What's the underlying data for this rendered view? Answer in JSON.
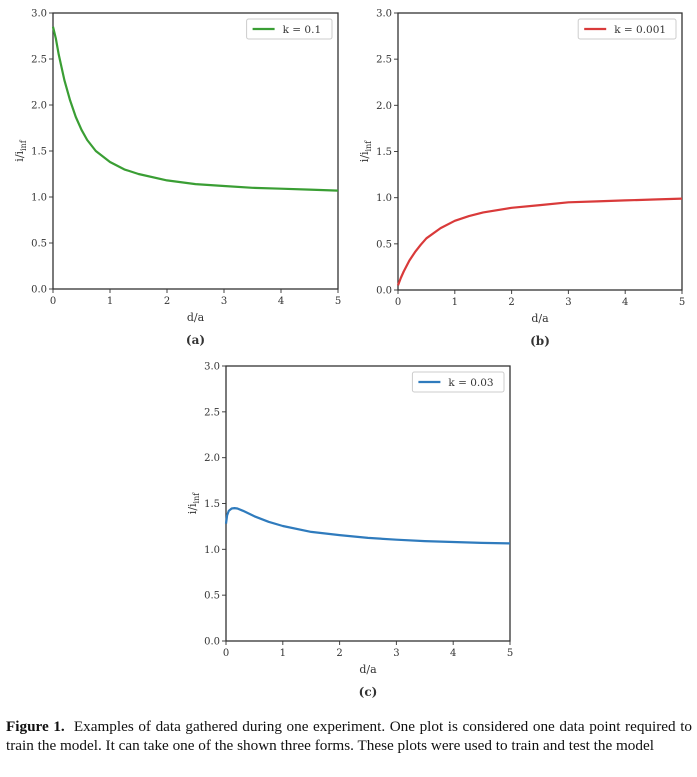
{
  "chart_data": [
    {
      "type": "line",
      "panel_label": "(a)",
      "xlabel": "d/a",
      "ylabel": "i/i",
      "ylabel_subscript": "inf",
      "xlim": [
        0,
        5
      ],
      "ylim": [
        0,
        3
      ],
      "xticks": [
        "0",
        "1",
        "2",
        "3",
        "4",
        "5"
      ],
      "yticks": [
        "0.0",
        "0.5",
        "1.0",
        "1.5",
        "2.0",
        "2.5",
        "3.0"
      ],
      "grid": false,
      "legend_position": "top-right",
      "series": [
        {
          "name": "k = 0.1",
          "color": "#3a9e34",
          "x": [
            0,
            0.05,
            0.1,
            0.2,
            0.3,
            0.4,
            0.5,
            0.6,
            0.75,
            1.0,
            1.25,
            1.5,
            2.0,
            2.5,
            3.0,
            3.5,
            4.0,
            4.5,
            5.0
          ],
          "y": [
            2.85,
            2.72,
            2.55,
            2.27,
            2.05,
            1.87,
            1.73,
            1.62,
            1.5,
            1.38,
            1.3,
            1.25,
            1.18,
            1.14,
            1.12,
            1.1,
            1.09,
            1.08,
            1.07
          ]
        }
      ]
    },
    {
      "type": "line",
      "panel_label": "(b)",
      "xlabel": "d/a",
      "ylabel": "i/i",
      "ylabel_subscript": "inf",
      "xlim": [
        0,
        5
      ],
      "ylim": [
        0,
        3
      ],
      "xticks": [
        "0",
        "1",
        "2",
        "3",
        "4",
        "5"
      ],
      "yticks": [
        "0.0",
        "0.5",
        "1.0",
        "1.5",
        "2.0",
        "2.5",
        "3.0"
      ],
      "grid": false,
      "legend_position": "top-right",
      "series": [
        {
          "name": "k = 0.001",
          "color": "#d93a3a",
          "x": [
            0,
            0.05,
            0.1,
            0.2,
            0.3,
            0.4,
            0.5,
            0.75,
            1.0,
            1.25,
            1.5,
            2.0,
            2.5,
            3.0,
            3.5,
            4.0,
            4.5,
            5.0
          ],
          "y": [
            0.05,
            0.13,
            0.2,
            0.32,
            0.41,
            0.49,
            0.56,
            0.67,
            0.75,
            0.8,
            0.84,
            0.89,
            0.92,
            0.95,
            0.96,
            0.97,
            0.98,
            0.99
          ]
        }
      ]
    },
    {
      "type": "line",
      "panel_label": "(c)",
      "xlabel": "d/a",
      "ylabel": "i/i",
      "ylabel_subscript": "inf",
      "xlim": [
        0,
        5
      ],
      "ylim": [
        0,
        3
      ],
      "xticks": [
        "0",
        "1",
        "2",
        "3",
        "4",
        "5"
      ],
      "yticks": [
        "0.0",
        "0.5",
        "1.0",
        "1.5",
        "2.0",
        "2.5",
        "3.0"
      ],
      "grid": false,
      "legend_position": "top-right",
      "series": [
        {
          "name": "k = 0.03",
          "color": "#2f7bbd",
          "x": [
            0,
            0.02,
            0.05,
            0.1,
            0.15,
            0.2,
            0.3,
            0.5,
            0.75,
            1.0,
            1.5,
            2.0,
            2.5,
            3.0,
            3.5,
            4.0,
            4.5,
            5.0
          ],
          "y": [
            1.28,
            1.37,
            1.42,
            1.445,
            1.45,
            1.445,
            1.42,
            1.36,
            1.3,
            1.255,
            1.19,
            1.155,
            1.125,
            1.105,
            1.09,
            1.08,
            1.07,
            1.065
          ]
        }
      ]
    }
  ],
  "caption": {
    "label": "Figure 1.",
    "text": "Examples of data gathered during one experiment. One plot is considered one data point required to train the model. It can take one of the shown three forms. These plots were used to train and test the model"
  }
}
